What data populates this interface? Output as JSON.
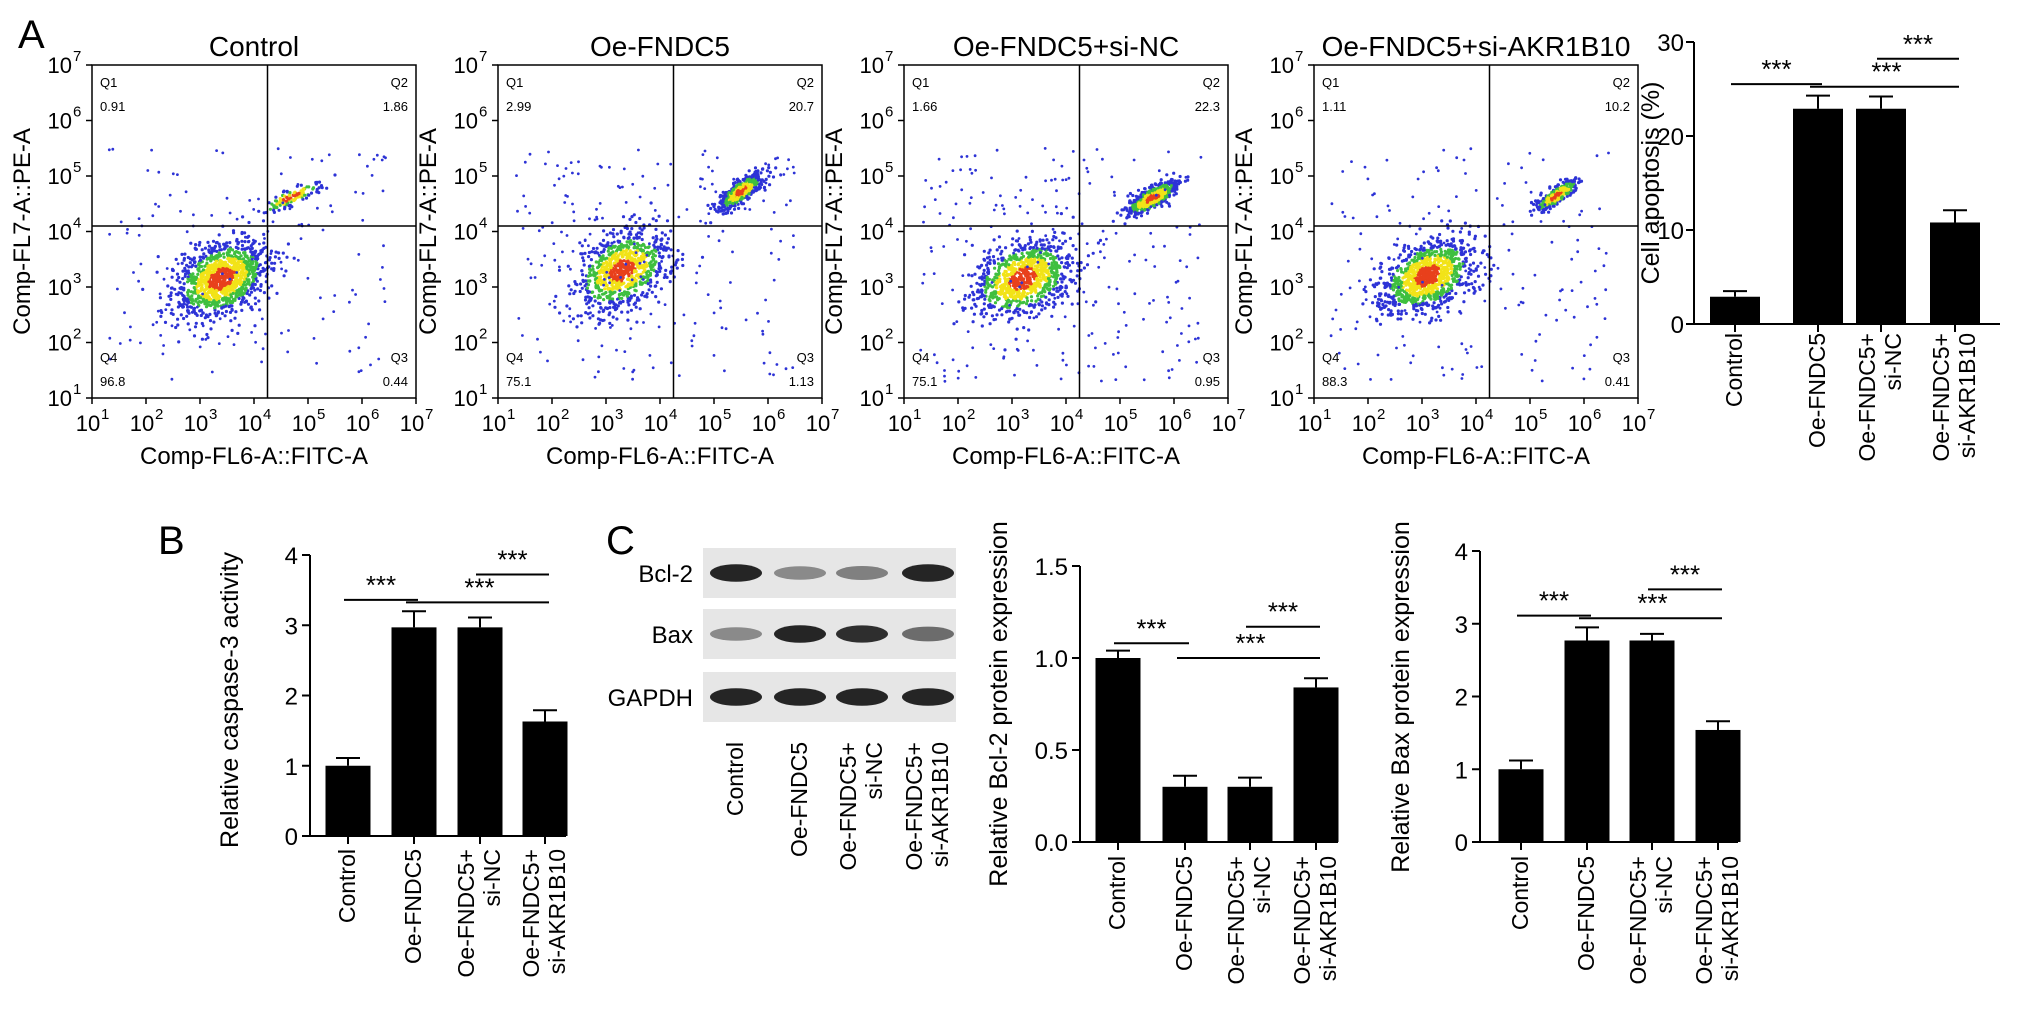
{
  "panel_labels": [
    "A",
    "B",
    "C"
  ],
  "colors": {
    "bar": "#000000",
    "dot_blue": "#2d33d6",
    "dot_green": "#3fbf3f",
    "dot_yellow": "#f2e318",
    "dot_red": "#e8401c"
  },
  "significance": "***",
  "chart_data": [
    {
      "type": "scatter",
      "title": "Control",
      "xlabel": "Comp-FL6-A::FITC-A",
      "ylabel": "Comp-FL7-A::PE-A",
      "scale": "log",
      "xlim": [
        10,
        10000000
      ],
      "ylim": [
        10,
        10000000
      ],
      "xticks": [
        "10",
        "10",
        "10",
        "10",
        "10",
        "10",
        "10"
      ],
      "tick_exponents": [
        "1",
        "2",
        "3",
        "4",
        "5",
        "6",
        "7"
      ],
      "quadrants": [
        {
          "name": "Q1",
          "value": "0.91"
        },
        {
          "name": "Q2",
          "value": "1.86"
        },
        {
          "name": "Q3",
          "value": "0.44"
        },
        {
          "name": "Q4",
          "value": "96.8"
        }
      ]
    },
    {
      "type": "scatter",
      "title": "Oe-FNDC5",
      "xlabel": "Comp-FL6-A::FITC-A",
      "ylabel": "Comp-FL7-A::PE-A",
      "scale": "log",
      "xlim": [
        10,
        10000000
      ],
      "ylim": [
        10,
        10000000
      ],
      "xticks": [
        "10",
        "10",
        "10",
        "10",
        "10",
        "10",
        "10"
      ],
      "tick_exponents": [
        "1",
        "2",
        "3",
        "4",
        "5",
        "6",
        "7"
      ],
      "quadrants": [
        {
          "name": "Q1",
          "value": "2.99"
        },
        {
          "name": "Q2",
          "value": "20.7"
        },
        {
          "name": "Q3",
          "value": "1.13"
        },
        {
          "name": "Q4",
          "value": "75.1"
        }
      ]
    },
    {
      "type": "scatter",
      "title": "Oe-FNDC5+si-NC",
      "xlabel": "Comp-FL6-A::FITC-A",
      "ylabel": "Comp-FL7-A::PE-A",
      "scale": "log",
      "xlim": [
        10,
        10000000
      ],
      "ylim": [
        10,
        10000000
      ],
      "xticks": [
        "10",
        "10",
        "10",
        "10",
        "10",
        "10",
        "10"
      ],
      "tick_exponents": [
        "1",
        "2",
        "3",
        "4",
        "5",
        "6",
        "7"
      ],
      "quadrants": [
        {
          "name": "Q1",
          "value": "1.66"
        },
        {
          "name": "Q2",
          "value": "22.3"
        },
        {
          "name": "Q3",
          "value": "0.95"
        },
        {
          "name": "Q4",
          "value": "75.1"
        }
      ]
    },
    {
      "type": "scatter",
      "title": "Oe-FNDC5+si-AKR1B10",
      "xlabel": "Comp-FL6-A::FITC-A",
      "ylabel": "Comp-FL7-A::PE-A",
      "scale": "log",
      "xlim": [
        10,
        10000000
      ],
      "ylim": [
        10,
        10000000
      ],
      "xticks": [
        "10",
        "10",
        "10",
        "10",
        "10",
        "10",
        "10"
      ],
      "tick_exponents": [
        "1",
        "2",
        "3",
        "4",
        "5",
        "6",
        "7"
      ],
      "quadrants": [
        {
          "name": "Q1",
          "value": "1.11"
        },
        {
          "name": "Q2",
          "value": "10.2"
        },
        {
          "name": "Q3",
          "value": "0.41"
        },
        {
          "name": "Q4",
          "value": "88.3"
        }
      ]
    },
    {
      "type": "bar",
      "ylabel": "Cell apoptosis (%)",
      "ylim": [
        0,
        30
      ],
      "yticks": [
        "0",
        "10",
        "20",
        "30"
      ],
      "categories": [
        "Control",
        "Oe-FNDC5",
        "Oe-FNDC5+\nsi-NC",
        "Oe-FNDC5+\nsi-AKR1B10"
      ],
      "values": [
        2.9,
        22.9,
        22.9,
        10.8
      ],
      "errors": [
        0.6,
        1.4,
        1.3,
        1.3
      ],
      "comparisons": [
        [
          0,
          1
        ],
        [
          1,
          3
        ],
        [
          2,
          3
        ]
      ]
    },
    {
      "type": "bar",
      "ylabel": "Relative caspase-3 activity",
      "ylim": [
        0,
        4
      ],
      "yticks": [
        "0",
        "1",
        "2",
        "3",
        "4"
      ],
      "categories": [
        "Control",
        "Oe-FNDC5",
        "Oe-FNDC5+\nsi-NC",
        "Oe-FNDC5+\nsi-AKR1B10"
      ],
      "values": [
        1.0,
        2.97,
        2.97,
        1.63
      ],
      "errors": [
        0.11,
        0.23,
        0.14,
        0.16
      ],
      "comparisons": [
        [
          0,
          1
        ],
        [
          1,
          3
        ],
        [
          2,
          3
        ]
      ]
    },
    {
      "type": "bar",
      "ylabel": "Relative Bcl-2 protein expression",
      "ylim": [
        0,
        1.5
      ],
      "yticks": [
        "0.0",
        "0.5",
        "1.0",
        "1.5"
      ],
      "categories": [
        "Control",
        "Oe-FNDC5",
        "Oe-FNDC5+\nsi-NC",
        "Oe-FNDC5+\nsi-AKR1B10"
      ],
      "values": [
        1.0,
        0.3,
        0.3,
        0.84
      ],
      "errors": [
        0.04,
        0.06,
        0.05,
        0.05
      ],
      "comparisons": [
        [
          0,
          1
        ],
        [
          1,
          3
        ],
        [
          2,
          3
        ]
      ]
    },
    {
      "type": "bar",
      "ylabel": "Relative Bax protein expression",
      "ylim": [
        0,
        4
      ],
      "yticks": [
        "0",
        "1",
        "2",
        "3",
        "4"
      ],
      "categories": [
        "Control",
        "Oe-FNDC5",
        "Oe-FNDC5+\nsi-NC",
        "Oe-FNDC5+\nsi-AKR1B10"
      ],
      "values": [
        1.0,
        2.77,
        2.77,
        1.54
      ],
      "errors": [
        0.12,
        0.18,
        0.09,
        0.12
      ],
      "comparisons": [
        [
          0,
          1
        ],
        [
          1,
          3
        ],
        [
          2,
          3
        ]
      ]
    }
  ],
  "western_blot": {
    "rows": [
      "Bcl-2",
      "Bax",
      "GAPDH"
    ],
    "lanes": [
      "Control",
      "Oe-FNDC5",
      "Oe-FNDC5+\nsi-NC",
      "Oe-FNDC5+\nsi-AKR1B10"
    ]
  }
}
